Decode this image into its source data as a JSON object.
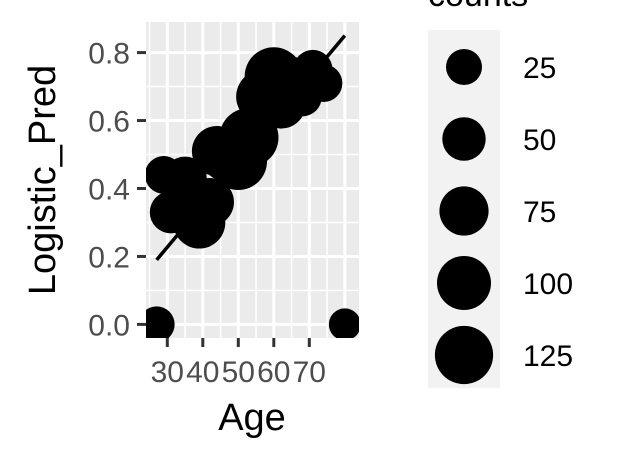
{
  "chart_data": {
    "type": "scatter",
    "xlabel": "Age",
    "ylabel": "Logistic_Pred",
    "x_tick_labels": [
      "30",
      "40",
      "50",
      "60",
      "70"
    ],
    "x_ticks": [
      30,
      40,
      50,
      60,
      70
    ],
    "xlim": [
      24,
      84
    ],
    "y_tick_labels": [
      "0.0",
      "0.2",
      "0.4",
      "0.6",
      "0.8"
    ],
    "y_ticks": [
      0.0,
      0.2,
      0.4,
      0.6,
      0.8
    ],
    "ylim": [
      -0.04,
      0.89
    ],
    "grid": true,
    "panel_background": "#ebebeb",
    "point_color": "#000000",
    "points": [
      {
        "x": 27,
        "y": 0.0,
        "counts": 25
      },
      {
        "x": 29,
        "y": 0.44,
        "counts": 30
      },
      {
        "x": 31,
        "y": 0.33,
        "counts": 45
      },
      {
        "x": 35,
        "y": 0.43,
        "counts": 50
      },
      {
        "x": 39,
        "y": 0.3,
        "counts": 90
      },
      {
        "x": 42,
        "y": 0.36,
        "counts": 70
      },
      {
        "x": 44,
        "y": 0.51,
        "counts": 80
      },
      {
        "x": 47,
        "y": 0.5,
        "counts": 105
      },
      {
        "x": 50,
        "y": 0.48,
        "counts": 120
      },
      {
        "x": 53,
        "y": 0.55,
        "counts": 130
      },
      {
        "x": 57,
        "y": 0.67,
        "counts": 100
      },
      {
        "x": 60,
        "y": 0.73,
        "counts": 125
      },
      {
        "x": 62,
        "y": 0.65,
        "counts": 80
      },
      {
        "x": 65,
        "y": 0.72,
        "counts": 60
      },
      {
        "x": 68,
        "y": 0.67,
        "counts": 35
      },
      {
        "x": 71,
        "y": 0.75,
        "counts": 35
      },
      {
        "x": 74,
        "y": 0.71,
        "counts": 30
      },
      {
        "x": 80,
        "y": 0.0,
        "counts": 15
      }
    ],
    "fit_line": {
      "x": [
        27,
        80
      ],
      "y": [
        0.19,
        0.85
      ]
    },
    "legend": {
      "title": "counts",
      "placement": "right",
      "background": "#f2f2f2",
      "entries": [
        {
          "label": "25",
          "value": 25
        },
        {
          "label": "50",
          "value": 50
        },
        {
          "label": "75",
          "value": 75
        },
        {
          "label": "100",
          "value": 100
        },
        {
          "label": "125",
          "value": 125
        }
      ]
    }
  }
}
